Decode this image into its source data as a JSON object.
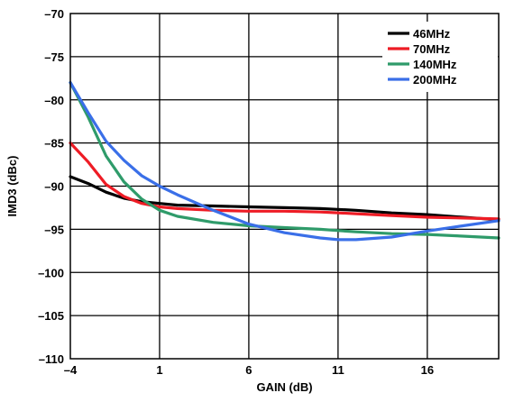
{
  "chart_data": {
    "type": "line",
    "xlabel": "GAIN (dB)",
    "ylabel": "IMD3 (dBc)",
    "xlim": [
      -4,
      20
    ],
    "ylim": [
      -110,
      -70
    ],
    "xticks": [
      -4,
      1,
      6,
      11,
      16
    ],
    "xtick_labels": [
      "–4",
      "1",
      "6",
      "11",
      "16"
    ],
    "yticks": [
      -70,
      -75,
      -80,
      -85,
      -90,
      -95,
      -100,
      -105,
      -110
    ],
    "ytick_labels": [
      "–70",
      "–75",
      "–80",
      "–85",
      "–90",
      "–95",
      "–100",
      "–105",
      "–110"
    ],
    "grid": true,
    "legend_position": "top-right",
    "series": [
      {
        "name": "46MHz",
        "color": "#000000",
        "x": [
          -4,
          -3,
          -2,
          -1,
          0,
          1,
          2,
          4,
          6,
          8,
          10,
          12,
          14,
          16,
          18,
          20
        ],
        "y": [
          -88.9,
          -89.7,
          -90.7,
          -91.4,
          -91.8,
          -92.0,
          -92.2,
          -92.3,
          -92.4,
          -92.5,
          -92.6,
          -92.8,
          -93.1,
          -93.3,
          -93.6,
          -93.9
        ]
      },
      {
        "name": "70MHz",
        "color": "#ee1c25",
        "x": [
          -4,
          -3,
          -2,
          -1,
          0,
          1,
          2,
          4,
          6,
          8,
          10,
          12,
          14,
          16,
          18,
          20
        ],
        "y": [
          -85.0,
          -87.2,
          -89.8,
          -91.2,
          -92.0,
          -92.4,
          -92.6,
          -92.8,
          -92.9,
          -92.9,
          -93.0,
          -93.2,
          -93.4,
          -93.6,
          -93.7,
          -93.8
        ]
      },
      {
        "name": "140MHz",
        "color": "#2f9b6a",
        "x": [
          -4,
          -3,
          -2,
          -1,
          0,
          1,
          2,
          4,
          6,
          8,
          10,
          12,
          14,
          16,
          18,
          20
        ],
        "y": [
          -78.0,
          -82.0,
          -86.5,
          -89.5,
          -91.5,
          -92.8,
          -93.5,
          -94.2,
          -94.6,
          -94.8,
          -95.0,
          -95.3,
          -95.5,
          -95.6,
          -95.8,
          -96.0
        ]
      },
      {
        "name": "200MHz",
        "color": "#3a6fe8",
        "x": [
          -4,
          -3,
          -2,
          -1,
          0,
          1,
          2,
          4,
          6,
          8,
          10,
          11,
          12,
          14,
          16,
          18,
          20
        ],
        "y": [
          -78.0,
          -81.5,
          -84.8,
          -87.0,
          -88.8,
          -90.0,
          -91.0,
          -92.8,
          -94.4,
          -95.4,
          -96.0,
          -96.2,
          -96.2,
          -95.9,
          -95.2,
          -94.6,
          -94.0
        ]
      }
    ]
  }
}
